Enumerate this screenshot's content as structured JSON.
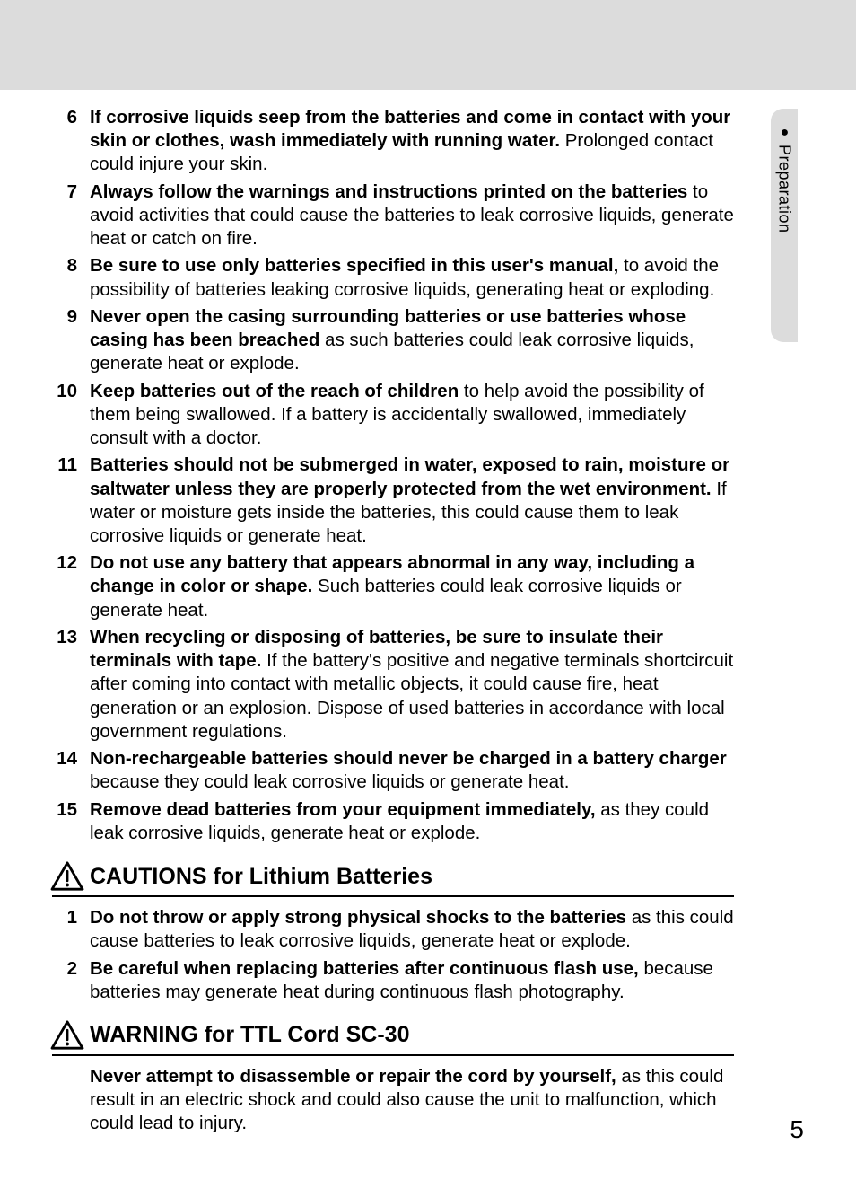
{
  "colors": {
    "banner_bg": "#dcdcdc",
    "tab_bg": "#dcdcdc",
    "text": "#000000",
    "page_bg": "#ffffff",
    "rule": "#000000"
  },
  "typography": {
    "body_fontsize_pt": 15,
    "num_fontsize_pt": 15,
    "section_title_fontsize_pt": 19,
    "sidetab_fontsize_pt": 14,
    "pagenum_fontsize_pt": 21,
    "line_height": 1.28,
    "num_weight": 700,
    "bold_weight": 700
  },
  "side_tab": {
    "bullet": "●",
    "label": "Preparation"
  },
  "page_number": "5",
  "list1": [
    {
      "n": "6",
      "bold": "If corrosive liquids seep from the batteries and come in contact with your skin or clothes, wash immediately with running water.",
      "rest": " Prolonged contact could injure your skin."
    },
    {
      "n": "7",
      "bold": "Always follow the warnings and instructions printed on the batteries",
      "rest": " to avoid activities that could cause the batteries to leak corrosive liquids, generate heat or catch on fire."
    },
    {
      "n": "8",
      "bold": "Be sure to use only batteries specified in this user's manual,",
      "rest": " to avoid the possibility of batteries leaking corrosive liquids, generating heat or exploding."
    },
    {
      "n": "9",
      "bold": "Never open the casing surrounding batteries or use batteries whose casing has been breached",
      "rest": " as such batteries could leak corrosive liquids, generate heat or explode."
    },
    {
      "n": "10",
      "bold": "Keep batteries out of the reach of children",
      "rest": " to help avoid the possibility of them being swallowed. If a battery is accidentally swallowed, immediately consult with a doctor."
    },
    {
      "n": "11",
      "bold": "Batteries should not be submerged in water, exposed to rain, moisture or saltwater unless they are properly protected from the wet environment.",
      "rest": " If water or moisture gets inside the batteries, this could cause them to leak corrosive liquids or generate heat."
    },
    {
      "n": "12",
      "bold": "Do not use any battery that appears abnormal in any way, including a change in color or shape.",
      "rest": " Such batteries could leak corrosive liquids or generate heat."
    },
    {
      "n": "13",
      "bold": "When recycling or disposing of batteries, be sure to insulate their terminals with tape.",
      "rest": " If the battery's positive and negative terminals shortcircuit after coming into contact with metallic objects, it could cause fire, heat generation or an explosion. Dispose of used batteries in accordance with local government regulations."
    },
    {
      "n": "14",
      "bold": "Non-rechargeable batteries should never be charged in a battery charger",
      "rest": " because they could leak corrosive liquids or generate heat."
    },
    {
      "n": "15",
      "bold": "Remove dead batteries from your equipment immediately,",
      "rest": " as they could leak corrosive liquids, generate heat or explode."
    }
  ],
  "section_cautions": {
    "title": "CAUTIONS for Lithium Batteries",
    "items": [
      {
        "n": "1",
        "bold": "Do not throw or apply strong physical shocks to the batteries",
        "rest": " as this could cause batteries to leak corrosive liquids, generate heat or explode."
      },
      {
        "n": "2",
        "bold": "Be careful when replacing batteries after continuous flash use,",
        "rest": " because batteries may generate heat during continuous flash photography."
      }
    ]
  },
  "section_warning": {
    "title": "WARNING for TTL Cord SC-30",
    "items": [
      {
        "n": "",
        "bold": "Never attempt to disassemble or repair the cord by yourself,",
        "rest": " as this could result in an electric shock and could also cause the unit to malfunction, which could lead to injury."
      }
    ]
  }
}
